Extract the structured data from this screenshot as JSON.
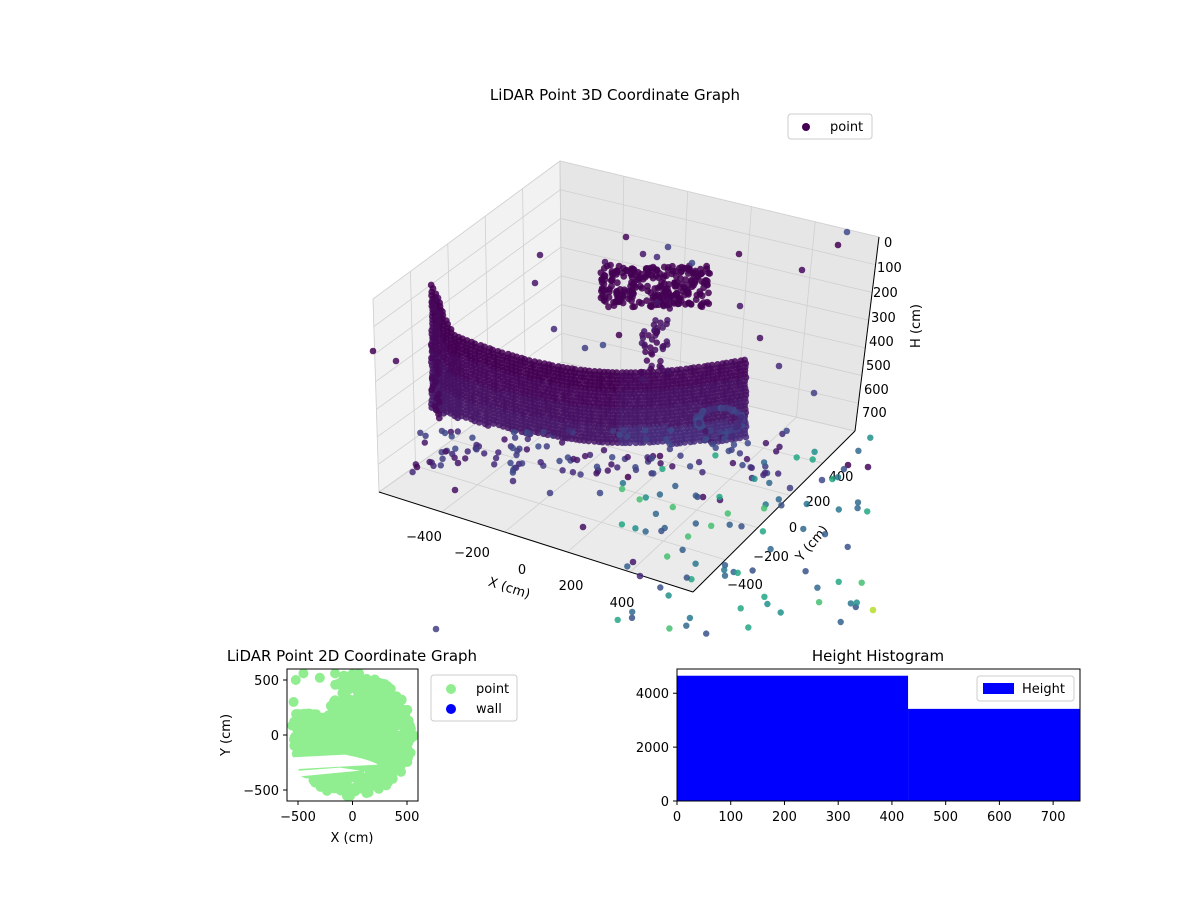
{
  "chart_data": [
    {
      "type": "scatter3d",
      "title": "LiDAR Point 3D Coordinate Graph",
      "xlabel": "X (cm)",
      "ylabel": "Y (cm)",
      "zlabel": "H (cm)",
      "xticks": [
        "−400",
        "−200",
        "0",
        "200",
        "400"
      ],
      "yticks": [
        "−400",
        "−200",
        "0",
        "200",
        "400"
      ],
      "zticks": [
        "0",
        "100",
        "200",
        "300",
        "400",
        "500",
        "600",
        "700"
      ],
      "xlim": [
        -500,
        500
      ],
      "ylim": [
        -500,
        500
      ],
      "zlim": [
        700,
        0
      ],
      "z_axis_inverted": true,
      "grid": true,
      "legend": [
        "point"
      ],
      "legend_position": "upper right",
      "colormap": "viridis",
      "series": [
        {
          "name": "point",
          "description_points": [
            {
              "x": -420,
              "y": 0,
              "h": 300
            },
            {
              "x": -300,
              "y": 0,
              "h": 420
            },
            {
              "x": -200,
              "y": 0,
              "h": 440
            },
            {
              "x": -100,
              "y": 0,
              "h": 440
            },
            {
              "x": 0,
              "y": 0,
              "h": 430
            },
            {
              "x": 100,
              "y": 0,
              "h": 420
            },
            {
              "x": 200,
              "y": 0,
              "h": 400
            },
            {
              "x": 300,
              "y": 0,
              "h": 380
            },
            {
              "x": 0,
              "y": 300,
              "h": 150
            },
            {
              "x": 50,
              "y": 350,
              "h": 120
            },
            {
              "x": 300,
              "y": -400,
              "h": 650
            },
            {
              "x": 400,
              "y": -300,
              "h": 620
            }
          ]
        }
      ]
    },
    {
      "type": "scatter",
      "title": "LiDAR Point 2D Coordinate Graph",
      "xlabel": "X (cm)",
      "ylabel": "Y (cm)",
      "xticks": [
        "−500",
        "0",
        "500"
      ],
      "yticks": [
        "−500",
        "0",
        "500"
      ],
      "xlim": [
        -600,
        600
      ],
      "ylim": [
        -600,
        600
      ],
      "legend_position": "outside right",
      "series": [
        {
          "name": "point",
          "color": "#90ee90"
        },
        {
          "name": "wall",
          "color": "#0000ff"
        }
      ]
    },
    {
      "type": "bar",
      "title": "Height Histogram",
      "xlabel": "",
      "ylabel": "",
      "xticks": [
        "0",
        "100",
        "200",
        "300",
        "400",
        "500",
        "600",
        "700"
      ],
      "yticks": [
        "0",
        "2000",
        "4000"
      ],
      "xlim": [
        0,
        750
      ],
      "ylim": [
        0,
        4900
      ],
      "legend_position": "upper right",
      "series": [
        {
          "name": "Height",
          "color": "#0000ff",
          "bins": [
            {
              "start": 0,
              "end": 430,
              "value": 4650
            },
            {
              "start": 430,
              "end": 750,
              "value": 3420
            }
          ]
        }
      ]
    }
  ]
}
